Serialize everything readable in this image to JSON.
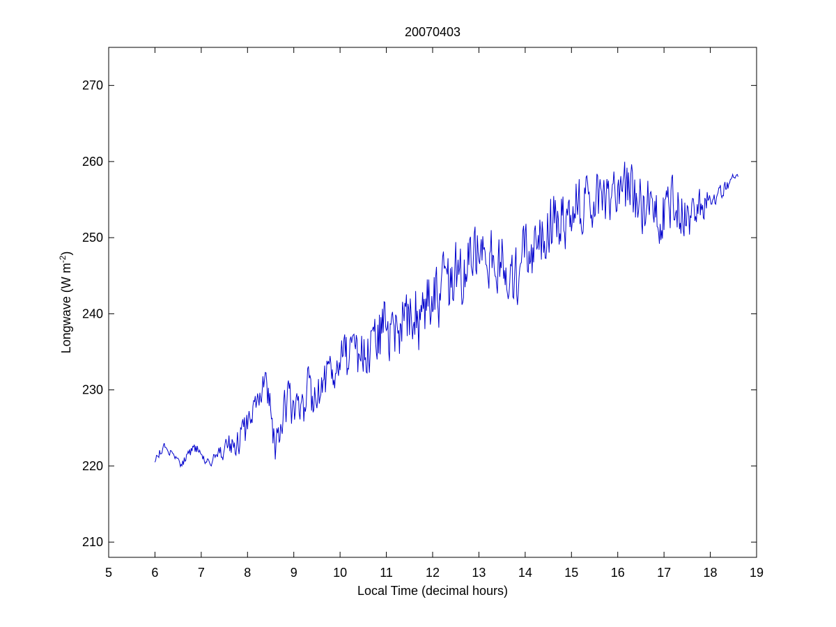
{
  "chart_data": {
    "type": "line",
    "title": "20070403",
    "xlabel": "Local Time (decimal hours)",
    "ylabel": "Longwave (W m",
    "ylabel_exponent": "-2",
    "ylabel_suffix": ")",
    "xlim": [
      5,
      19
    ],
    "ylim": [
      208,
      275
    ],
    "xticks": [
      5,
      6,
      7,
      8,
      9,
      10,
      11,
      12,
      13,
      14,
      15,
      16,
      17,
      18,
      19
    ],
    "yticks": [
      210,
      220,
      230,
      240,
      250,
      260,
      270
    ],
    "grid": false,
    "legend": "none",
    "series": [
      {
        "color": "#0000cc",
        "x": [
          6.0,
          6.1,
          6.2,
          6.3,
          6.4,
          6.5,
          6.6,
          6.7,
          6.8,
          6.9,
          7.0,
          7.1,
          7.2,
          7.3,
          7.4,
          7.5,
          7.6,
          7.7,
          7.8,
          7.9,
          8.0,
          8.1,
          8.2,
          8.3,
          8.4,
          8.5,
          8.6,
          8.7,
          8.8,
          8.9,
          9.0,
          9.1,
          9.2,
          9.3,
          9.4,
          9.5,
          9.6,
          9.7,
          9.8,
          9.9,
          10.0,
          10.1,
          10.2,
          10.3,
          10.4,
          10.5,
          10.6,
          10.7,
          10.8,
          10.9,
          11.0,
          11.1,
          11.2,
          11.3,
          11.4,
          11.5,
          11.6,
          11.7,
          11.8,
          11.9,
          12.0,
          12.1,
          12.2,
          12.3,
          12.4,
          12.5,
          12.6,
          12.7,
          12.8,
          12.9,
          13.0,
          13.1,
          13.2,
          13.3,
          13.4,
          13.5,
          13.6,
          13.7,
          13.8,
          13.9,
          14.0,
          14.1,
          14.2,
          14.3,
          14.4,
          14.5,
          14.6,
          14.7,
          14.8,
          14.9,
          15.0,
          15.1,
          15.2,
          15.3,
          15.4,
          15.5,
          15.6,
          15.7,
          15.8,
          15.9,
          16.0,
          16.1,
          16.2,
          16.3,
          16.4,
          16.5,
          16.6,
          16.7,
          16.8,
          16.9,
          17.0,
          17.1,
          17.2,
          17.3,
          17.4,
          17.5,
          17.6,
          17.7,
          17.8,
          17.9,
          18.0,
          18.1,
          18.2,
          18.3,
          18.4,
          18.5,
          18.6
        ],
        "y": [
          220.5,
          221.8,
          222.5,
          222.0,
          221.2,
          220.2,
          220.5,
          221.3,
          221.8,
          222.5,
          221.5,
          220.5,
          219.5,
          221.0,
          221.5,
          222.0,
          222.5,
          221.8,
          222.5,
          224.0,
          225.5,
          227.5,
          227.0,
          229.0,
          231.0,
          226.5,
          223.5,
          226.0,
          228.0,
          228.5,
          227.0,
          229.5,
          226.0,
          230.0,
          228.0,
          229.0,
          230.5,
          231.5,
          233.0,
          232.5,
          233.0,
          235.5,
          233.0,
          235.0,
          234.5,
          235.5,
          236.0,
          235.5,
          236.0,
          238.0,
          237.5,
          237.0,
          238.0,
          238.5,
          239.0,
          239.5,
          240.5,
          239.5,
          240.0,
          241.0,
          241.5,
          242.0,
          243.0,
          244.0,
          243.5,
          244.5,
          245.5,
          246.0,
          246.5,
          247.0,
          247.0,
          247.5,
          246.5,
          247.0,
          247.0,
          246.5,
          247.0,
          243.0,
          244.0,
          246.0,
          247.5,
          248.0,
          249.0,
          249.5,
          250.5,
          251.0,
          252.0,
          252.5,
          253.0,
          253.0,
          253.5,
          254.0,
          254.0,
          254.5,
          255.0,
          254.5,
          255.0,
          255.0,
          255.5,
          255.0,
          255.5,
          255.5,
          256.0,
          255.5,
          255.0,
          254.0,
          253.5,
          254.5,
          254.0,
          253.5,
          253.5,
          254.0,
          254.5,
          254.0,
          253.5,
          253.0,
          252.5,
          253.5,
          254.0,
          254.5,
          255.0,
          255.5,
          256.0,
          256.5,
          257.0,
          258.0,
          258.0
        ],
        "noise": [
          0.8,
          0.6,
          0.6,
          0.7,
          0.6,
          0.8,
          0.8,
          0.8,
          1.0,
          1.0,
          1.5,
          1.2,
          1.2,
          1.2,
          1.5,
          1.8,
          2.2,
          2.5,
          3.0,
          3.0,
          3.0,
          2.5,
          2.5,
          3.0,
          3.5,
          3.5,
          3.5,
          3.5,
          3.0,
          3.5,
          3.5,
          3.5,
          3.5,
          3.5,
          3.5,
          3.5,
          3.5,
          3.5,
          3.0,
          3.0,
          3.5,
          4.5,
          4.0,
          4.0,
          4.0,
          4.0,
          4.0,
          4.5,
          4.5,
          5.5,
          5.5,
          5.0,
          5.0,
          5.0,
          5.0,
          5.0,
          5.5,
          5.5,
          5.5,
          5.5,
          5.5,
          5.5,
          5.5,
          5.5,
          5.5,
          5.5,
          5.5,
          5.5,
          5.5,
          5.5,
          5.5,
          5.5,
          5.5,
          5.5,
          5.0,
          5.0,
          5.5,
          5.0,
          5.0,
          5.0,
          5.0,
          5.0,
          5.0,
          5.0,
          5.0,
          5.0,
          5.0,
          5.0,
          5.0,
          5.0,
          5.0,
          5.0,
          5.0,
          5.0,
          5.0,
          4.5,
          4.5,
          4.5,
          4.0,
          4.0,
          4.0,
          4.5,
          4.5,
          4.5,
          4.5,
          4.5,
          4.5,
          4.5,
          4.5,
          4.5,
          4.5,
          4.0,
          4.0,
          4.0,
          4.0,
          4.0,
          3.5,
          3.5,
          3.0,
          2.5,
          2.0,
          1.5,
          1.2,
          1.0,
          0.8,
          0.6,
          0.5
        ]
      }
    ]
  }
}
